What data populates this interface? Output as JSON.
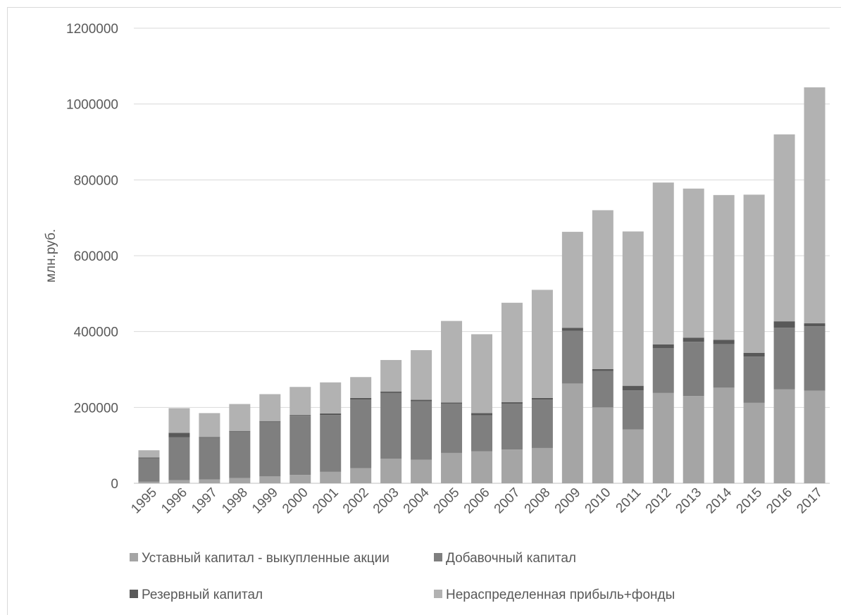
{
  "chart_data": {
    "type": "bar",
    "stacked": true,
    "title": "",
    "xlabel": "",
    "ylabel": "млн.руб.",
    "ylim": [
      0,
      1200000
    ],
    "yticks": [
      0,
      200000,
      400000,
      600000,
      800000,
      1000000,
      1200000
    ],
    "grid": true,
    "legend_position": "bottom",
    "categories": [
      "1995",
      "1996",
      "1997",
      "1998",
      "1999",
      "2000",
      "2001",
      "2002",
      "2003",
      "2004",
      "2005",
      "2006",
      "2007",
      "2008",
      "2009",
      "2010",
      "2011",
      "2012",
      "2013",
      "2014",
      "2015",
      "2016",
      "2017"
    ],
    "series": [
      {
        "name": "Уставный капитал - выкупленные акции",
        "color": "#a5a5a5",
        "values": [
          4000,
          8000,
          10000,
          14000,
          18000,
          22000,
          30000,
          40000,
          65000,
          62000,
          80000,
          84000,
          89000,
          93000,
          263000,
          200000,
          142000,
          238000,
          230000,
          252000,
          212000,
          248000,
          244000
        ]
      },
      {
        "name": "Добавочный капитал",
        "color": "#7f7f7f",
        "values": [
          62000,
          113000,
          110000,
          122000,
          144000,
          156000,
          150000,
          181000,
          173000,
          154000,
          130000,
          95000,
          121000,
          128000,
          139000,
          96000,
          103000,
          118000,
          143000,
          115000,
          122000,
          162000,
          170000
        ]
      },
      {
        "name": "Резервный капитал",
        "color": "#595959",
        "values": [
          2000,
          12000,
          2000,
          2000,
          2000,
          2000,
          4000,
          4000,
          4000,
          4000,
          3000,
          6000,
          4000,
          4000,
          8000,
          5000,
          12000,
          10000,
          11000,
          11000,
          10000,
          17000,
          8000
        ]
      },
      {
        "name": "Нераспределенная прибыль+фонды",
        "color": "#b2b2b2",
        "values": [
          19000,
          65000,
          63000,
          71000,
          71000,
          74000,
          82000,
          55000,
          83000,
          131000,
          215000,
          208000,
          262000,
          285000,
          253000,
          419000,
          407000,
          427000,
          393000,
          382000,
          417000,
          493000,
          622000
        ]
      }
    ]
  }
}
